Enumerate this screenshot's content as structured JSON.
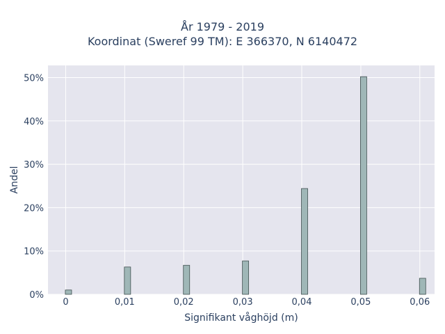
{
  "chart_data": {
    "type": "bar",
    "title_line1": "År 1979 - 2019",
    "title_line2": "Koordinat (Sweref 99 TM): E 366370, N 6140472",
    "xlabel": "Signifikant våghöjd (m)",
    "ylabel": "Andel",
    "x": [
      0,
      0.01,
      0.02,
      0.03,
      0.04,
      0.05,
      0.06
    ],
    "x_tick_labels": [
      "0",
      "0,01",
      "0,02",
      "0,03",
      "0,04",
      "0,05",
      "0,06"
    ],
    "values": [
      1.0,
      6.3,
      6.7,
      7.7,
      24.4,
      50.2,
      3.7
    ],
    "y_ticks": [
      0,
      10,
      20,
      30,
      40,
      50
    ],
    "y_tick_labels": [
      "0%",
      "10%",
      "20%",
      "30%",
      "40%",
      "50%"
    ],
    "xlim": [
      -0.003,
      0.0625
    ],
    "ylim": [
      0,
      52.8
    ],
    "grid": true,
    "colors": {
      "bar_fill": "#9fb7b7",
      "bar_stroke": "#3f4f4f",
      "plot_bg": "#e5e5ee",
      "grid": "#ffffff",
      "text": "#2a3f5f"
    }
  }
}
